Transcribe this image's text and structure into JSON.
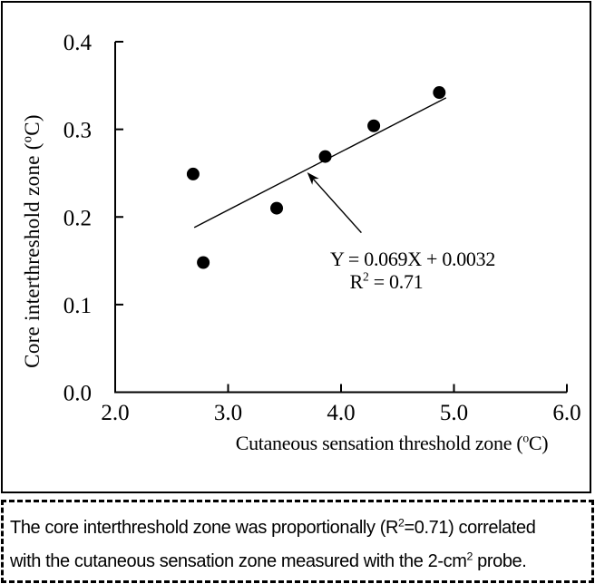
{
  "figure": {
    "chart_data": {
      "type": "scatter",
      "title": "",
      "xlabel_segments": [
        {
          "t": "Cutaneous sensation threshold zone ("
        },
        {
          "t": "o",
          "sup": true
        },
        {
          "t": "C)"
        }
      ],
      "ylabel_segments": [
        {
          "t": "Core interthreshold zone ("
        },
        {
          "t": "o",
          "sup": true
        },
        {
          "t": "C)"
        }
      ],
      "xlim": [
        2.0,
        6.0
      ],
      "ylim": [
        0.0,
        0.4
      ],
      "grid": false,
      "legend_position": "none",
      "x_ticks": [
        {
          "value": 2.0,
          "label": "2.0"
        },
        {
          "value": 3.0,
          "label": "3.0"
        },
        {
          "value": 4.0,
          "label": "4.0"
        },
        {
          "value": 5.0,
          "label": "5.0"
        },
        {
          "value": 6.0,
          "label": "6.0"
        }
      ],
      "y_ticks": [
        {
          "value": 0.0,
          "label": "0.0"
        },
        {
          "value": 0.1,
          "label": "0.1"
        },
        {
          "value": 0.2,
          "label": "0.2"
        },
        {
          "value": 0.3,
          "label": "0.3"
        },
        {
          "value": 0.4,
          "label": "0.4"
        }
      ],
      "points": [
        {
          "x": 2.69,
          "y": 0.249
        },
        {
          "x": 2.78,
          "y": 0.148
        },
        {
          "x": 3.43,
          "y": 0.21
        },
        {
          "x": 3.86,
          "y": 0.269
        },
        {
          "x": 4.29,
          "y": 0.304
        },
        {
          "x": 4.87,
          "y": 0.342
        }
      ],
      "trendline": {
        "x1": 2.7,
        "y1": 0.188,
        "x2": 4.93,
        "y2": 0.336,
        "equation": "Y = 0.069X + 0.0032",
        "r_squared": "0.71"
      },
      "annotation": {
        "line1_segments": [
          {
            "t": "Y = 0.069X + 0.0032"
          }
        ],
        "line2_segments": [
          {
            "t": "R"
          },
          {
            "t": "2",
            "sup": true
          },
          {
            "t": " = 0.71"
          }
        ],
        "arrow": {
          "tail_x": 4.18,
          "tail_y": 0.182,
          "tip_x": 3.7,
          "tip_y": 0.251
        }
      },
      "marker_color": "#000000",
      "line_color": "#000000"
    }
  },
  "caption": {
    "line1_segments": [
      {
        "t": "The core interthreshold zone was proportionally (R"
      },
      {
        "t": "2",
        "sup": true
      },
      {
        "t": "=0.71) correlated"
      }
    ],
    "line2_segments": [
      {
        "t": "with the cutaneous sensation zone measured with the 2-cm"
      },
      {
        "t": "2",
        "sup": true
      },
      {
        "t": " probe."
      }
    ]
  },
  "colors": {
    "foreground": "#000000",
    "background": "#ffffff"
  }
}
